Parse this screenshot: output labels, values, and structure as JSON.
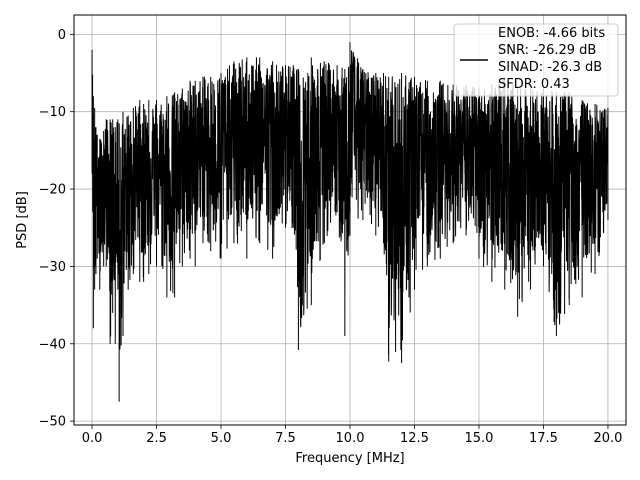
{
  "chart_data": {
    "type": "line",
    "xlabel": "Frequency [MHz]",
    "ylabel": "PSD [dB]",
    "xlim": [
      -0.7,
      20.7
    ],
    "ylim": [
      -50.5,
      2.5
    ],
    "xticks": [
      0.0,
      2.5,
      5.0,
      7.5,
      10.0,
      12.5,
      15.0,
      17.5,
      20.0
    ],
    "xtick_labels": [
      "0.0",
      "2.5",
      "5.0",
      "7.5",
      "10.0",
      "12.5",
      "15.0",
      "17.5",
      "20.0"
    ],
    "yticks": [
      0,
      -10,
      -20,
      -30,
      -40,
      -50
    ],
    "ytick_labels": [
      "0",
      "−10",
      "−20",
      "−30",
      "−40",
      "−50"
    ],
    "grid": true,
    "line_color": "#000000",
    "legend": {
      "placement": "top-right",
      "lines": [
        "ENOB: -4.66 bits",
        "SNR: -26.29 dB",
        "SINAD: -26.3 dB",
        "SFDR: 0.43"
      ]
    },
    "series": [
      {
        "x": [
          0.0,
          0.05,
          0.1,
          0.15,
          0.2,
          0.3,
          0.45,
          0.55,
          0.7,
          0.8,
          0.9,
          1.0,
          1.05,
          1.2,
          1.4,
          1.6,
          1.85,
          2.0,
          2.2,
          2.5,
          2.9,
          3.2,
          3.5,
          3.8,
          4.0,
          4.3,
          4.6,
          5.0,
          5.5,
          6.0,
          6.5,
          7.0,
          7.5,
          7.8,
          8.0,
          8.5,
          9.0,
          9.5,
          9.8,
          10.0,
          10.5,
          11.0,
          11.3,
          11.5,
          12.0,
          12.5,
          13.0,
          13.5,
          14.0,
          14.5,
          15.0,
          15.5,
          16.0,
          16.5,
          17.0,
          17.5,
          18.0,
          18.5,
          19.0,
          19.5,
          20.0
        ],
        "upper": [
          -2.0,
          -8.0,
          -9.5,
          -12.0,
          -13.0,
          -13.5,
          -12.5,
          -11.0,
          -11.0,
          -11.0,
          -12.0,
          -11.0,
          -11.5,
          -10.0,
          -10.5,
          -9.5,
          -8.5,
          -9.0,
          -8.5,
          -8.5,
          -8.0,
          -7.5,
          -7.0,
          -6.0,
          -6.0,
          -5.5,
          -5.5,
          -5.0,
          -3.5,
          -3.0,
          -3.0,
          -3.5,
          -4.0,
          -4.0,
          -4.5,
          -3.0,
          -3.5,
          -4.0,
          -4.5,
          -1.0,
          -4.5,
          -5.0,
          -5.0,
          -5.5,
          -5.0,
          -5.5,
          -6.0,
          -6.0,
          -6.5,
          -6.5,
          -7.0,
          -6.5,
          -5.5,
          -7.0,
          -7.0,
          -7.0,
          -7.5,
          -7.5,
          -8.5,
          -9.0,
          -9.5
        ],
        "lower": [
          -18.0,
          -38.0,
          -33.0,
          -31.0,
          -29.0,
          -33.0,
          -30.0,
          -30.0,
          -40.0,
          -36.0,
          -40.0,
          -33.0,
          -47.5,
          -39.0,
          -33.0,
          -31.0,
          -32.0,
          -32.0,
          -31.0,
          -30.0,
          -34.0,
          -34.0,
          -30.0,
          -29.0,
          -30.0,
          -27.0,
          -28.0,
          -29.0,
          -27.0,
          -29.0,
          -27.0,
          -29.0,
          -25.0,
          -25.0,
          -40.8,
          -35.0,
          -27.0,
          -23.0,
          -39.0,
          -26.0,
          -24.0,
          -26.0,
          -27.0,
          -42.3,
          -42.5,
          -33.0,
          -30.0,
          -29.0,
          -27.0,
          -26.0,
          -29.0,
          -32.0,
          -33.0,
          -36.5,
          -33.0,
          -30.0,
          -39.0,
          -35.0,
          -34.0,
          -31.0,
          -24.0
        ]
      }
    ]
  }
}
